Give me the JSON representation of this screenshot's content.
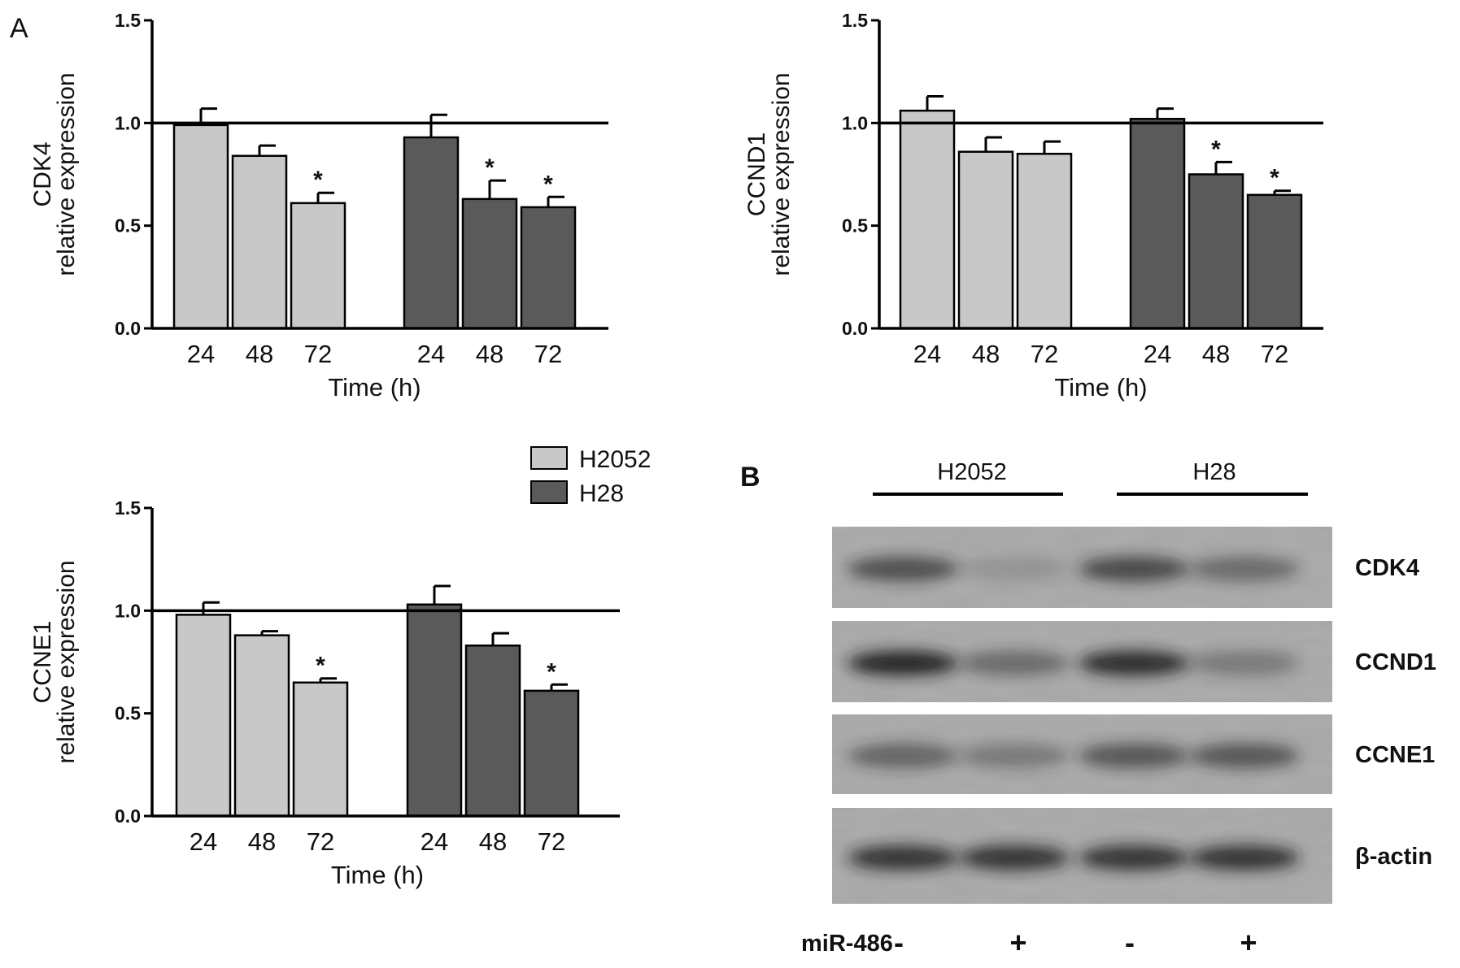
{
  "panel_labels": {
    "a": "A",
    "b": "B"
  },
  "legend": {
    "items": [
      {
        "label": "H2052",
        "color": "#c8c8c8"
      },
      {
        "label": "H28",
        "color": "#5a5a5a"
      }
    ]
  },
  "chart_data": [
    {
      "type": "bar",
      "title": "",
      "ylabel": [
        "CDK4",
        "relative expression"
      ],
      "xlabel": "Time (h)",
      "ylim": [
        0,
        1.5
      ],
      "yticks": [
        "0.0",
        "0.5",
        "1.0",
        "1.5"
      ],
      "reference_line": 1.0,
      "groups": [
        {
          "series": "H2052",
          "categories": [
            "24",
            "48",
            "72"
          ],
          "values": [
            0.99,
            0.84,
            0.61
          ],
          "errors": [
            0.08,
            0.05,
            0.05
          ],
          "marks": [
            "",
            "",
            "*"
          ]
        },
        {
          "series": "H28",
          "categories": [
            "24",
            "48",
            "72"
          ],
          "values": [
            0.93,
            0.63,
            0.59
          ],
          "errors": [
            0.11,
            0.09,
            0.05
          ],
          "marks": [
            "",
            "*",
            "*"
          ]
        }
      ]
    },
    {
      "type": "bar",
      "title": "",
      "ylabel": [
        "CCND1",
        "relative expression"
      ],
      "xlabel": "Time (h)",
      "ylim": [
        0,
        1.5
      ],
      "yticks": [
        "0.0",
        "0.5",
        "1.0",
        "1.5"
      ],
      "reference_line": 1.0,
      "groups": [
        {
          "series": "H2052",
          "categories": [
            "24",
            "48",
            "72"
          ],
          "values": [
            1.06,
            0.86,
            0.85
          ],
          "errors": [
            0.07,
            0.07,
            0.06
          ],
          "marks": [
            "",
            "",
            ""
          ]
        },
        {
          "series": "H28",
          "categories": [
            "24",
            "48",
            "72"
          ],
          "values": [
            1.02,
            0.75,
            0.65
          ],
          "errors": [
            0.05,
            0.06,
            0.02
          ],
          "marks": [
            "",
            "*",
            "*"
          ]
        }
      ]
    },
    {
      "type": "bar",
      "title": "",
      "ylabel": [
        "CCNE1",
        "relative expression"
      ],
      "xlabel": "Time (h)",
      "ylim": [
        0,
        1.5
      ],
      "yticks": [
        "0.0",
        "0.5",
        "1.0",
        "1.5"
      ],
      "reference_line": 1.0,
      "groups": [
        {
          "series": "H2052",
          "categories": [
            "24",
            "48",
            "72"
          ],
          "values": [
            0.98,
            0.88,
            0.65
          ],
          "errors": [
            0.06,
            0.02,
            0.02
          ],
          "marks": [
            "",
            "",
            "*"
          ]
        },
        {
          "series": "H28",
          "categories": [
            "24",
            "48",
            "72"
          ],
          "values": [
            1.03,
            0.83,
            0.61
          ],
          "errors": [
            0.09,
            0.06,
            0.03
          ],
          "marks": [
            "",
            "",
            "*"
          ]
        }
      ]
    }
  ],
  "blot": {
    "groups": [
      "H2052",
      "H28"
    ],
    "rows": [
      {
        "label": "CDK4",
        "bands": [
          0.65,
          0.15,
          0.7,
          0.45
        ]
      },
      {
        "label": "CCND1",
        "bands": [
          0.95,
          0.45,
          0.9,
          0.35
        ]
      },
      {
        "label": "CCNE1",
        "bands": [
          0.5,
          0.35,
          0.6,
          0.6
        ]
      },
      {
        "label": "β-actin",
        "bands": [
          0.85,
          0.85,
          0.85,
          0.85
        ]
      }
    ],
    "treatment": {
      "label": "miR-486",
      "lanes": [
        "-",
        "+",
        "-",
        "+"
      ]
    }
  }
}
